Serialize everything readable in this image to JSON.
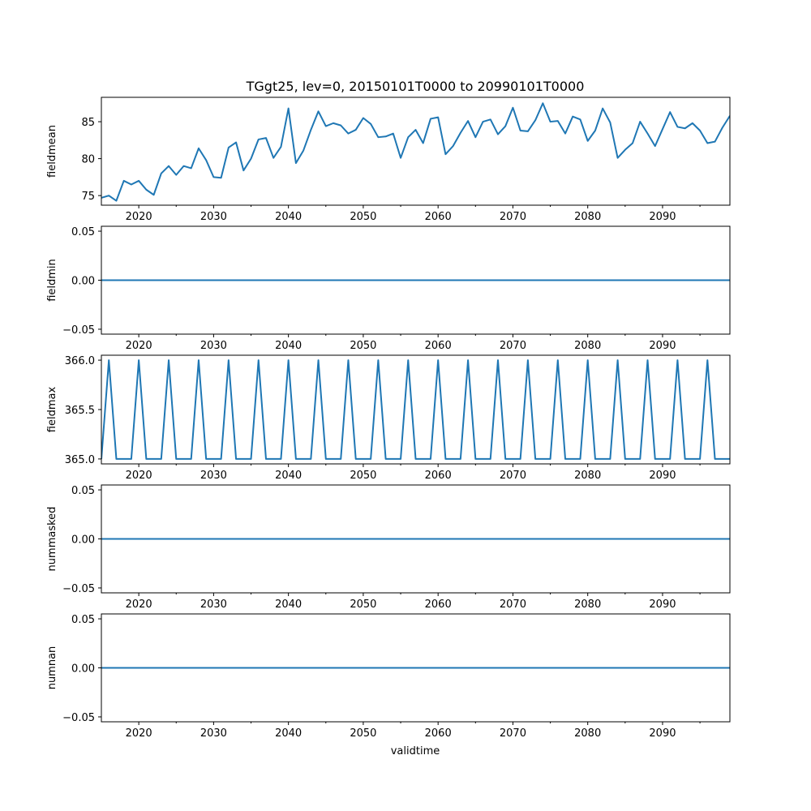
{
  "colors": {
    "line": "#1f77b4",
    "axes": "#000000",
    "background": "#ffffff"
  },
  "chart_data": {
    "type": "line",
    "title": "TGgt25, lev=0, 20150101T0000 to 20990101T0000",
    "xlabel": "validtime",
    "xlim": [
      2015,
      2099
    ],
    "x_major_ticks": [
      2020,
      2030,
      2040,
      2050,
      2060,
      2070,
      2080,
      2090
    ],
    "x_tick_labels": [
      "2020",
      "2030",
      "2040",
      "2050",
      "2060",
      "2070",
      "2080",
      "2090"
    ],
    "x_minor_ticks": [
      2025,
      2035,
      2045,
      2055,
      2065,
      2075,
      2085,
      2095
    ],
    "x": [
      2015,
      2016,
      2017,
      2018,
      2019,
      2020,
      2021,
      2022,
      2023,
      2024,
      2025,
      2026,
      2027,
      2028,
      2029,
      2030,
      2031,
      2032,
      2033,
      2034,
      2035,
      2036,
      2037,
      2038,
      2039,
      2040,
      2041,
      2042,
      2043,
      2044,
      2045,
      2046,
      2047,
      2048,
      2049,
      2050,
      2051,
      2052,
      2053,
      2054,
      2055,
      2056,
      2057,
      2058,
      2059,
      2060,
      2061,
      2062,
      2063,
      2064,
      2065,
      2066,
      2067,
      2068,
      2069,
      2070,
      2071,
      2072,
      2073,
      2074,
      2075,
      2076,
      2077,
      2078,
      2079,
      2080,
      2081,
      2082,
      2083,
      2084,
      2085,
      2086,
      2087,
      2088,
      2089,
      2090,
      2091,
      2092,
      2093,
      2094,
      2095,
      2096,
      2097,
      2098,
      2099
    ],
    "subplots": [
      {
        "ylabel": "fieldmean",
        "ylim": [
          73.7,
          88.3
        ],
        "y_ticks": [
          75,
          80,
          85
        ],
        "y_tick_labels": [
          "75",
          "80",
          "85"
        ],
        "values": [
          74.7,
          75.0,
          74.3,
          77.0,
          76.5,
          77.0,
          75.8,
          75.1,
          78.0,
          79.0,
          77.8,
          79.0,
          78.7,
          81.4,
          79.8,
          77.5,
          77.4,
          81.5,
          82.2,
          78.4,
          80.0,
          82.6,
          82.8,
          80.1,
          81.6,
          86.8,
          79.4,
          81.1,
          83.9,
          86.4,
          84.4,
          84.8,
          84.5,
          83.4,
          83.9,
          85.5,
          84.7,
          82.9,
          83.0,
          83.4,
          80.1,
          82.9,
          83.9,
          82.1,
          85.4,
          85.6,
          80.6,
          81.7,
          83.5,
          85.1,
          82.9,
          85.0,
          85.3,
          83.3,
          84.4,
          86.9,
          83.8,
          83.7,
          85.2,
          87.5,
          85.0,
          85.1,
          83.4,
          85.7,
          85.3,
          82.4,
          83.8,
          86.8,
          84.9,
          80.1,
          81.2,
          82.1,
          85.0,
          83.4,
          81.7,
          84.0,
          86.3,
          84.3,
          84.1,
          84.8,
          83.8,
          82.1,
          82.3,
          84.2,
          85.8
        ]
      },
      {
        "ylabel": "fieldmin",
        "ylim": [
          -0.055,
          0.055
        ],
        "y_ticks": [
          -0.05,
          0.0,
          0.05
        ],
        "y_tick_labels": [
          "−0.05",
          "0.00",
          "0.05"
        ],
        "constant": 0
      },
      {
        "ylabel": "fieldmax",
        "ylim": [
          364.95,
          366.05
        ],
        "y_ticks": [
          365.0,
          365.5,
          366.0
        ],
        "y_tick_labels": [
          "365.0",
          "365.5",
          "366.0"
        ],
        "leap_year_value": 366,
        "normal_year_value": 365
      },
      {
        "ylabel": "nummasked",
        "ylim": [
          -0.055,
          0.055
        ],
        "y_ticks": [
          -0.05,
          0.0,
          0.05
        ],
        "y_tick_labels": [
          "−0.05",
          "0.00",
          "0.05"
        ],
        "constant": 0
      },
      {
        "ylabel": "numnan",
        "ylim": [
          -0.055,
          0.055
        ],
        "y_ticks": [
          -0.05,
          0.0,
          0.05
        ],
        "y_tick_labels": [
          "−0.05",
          "0.00",
          "0.05"
        ],
        "constant": 0
      }
    ]
  }
}
